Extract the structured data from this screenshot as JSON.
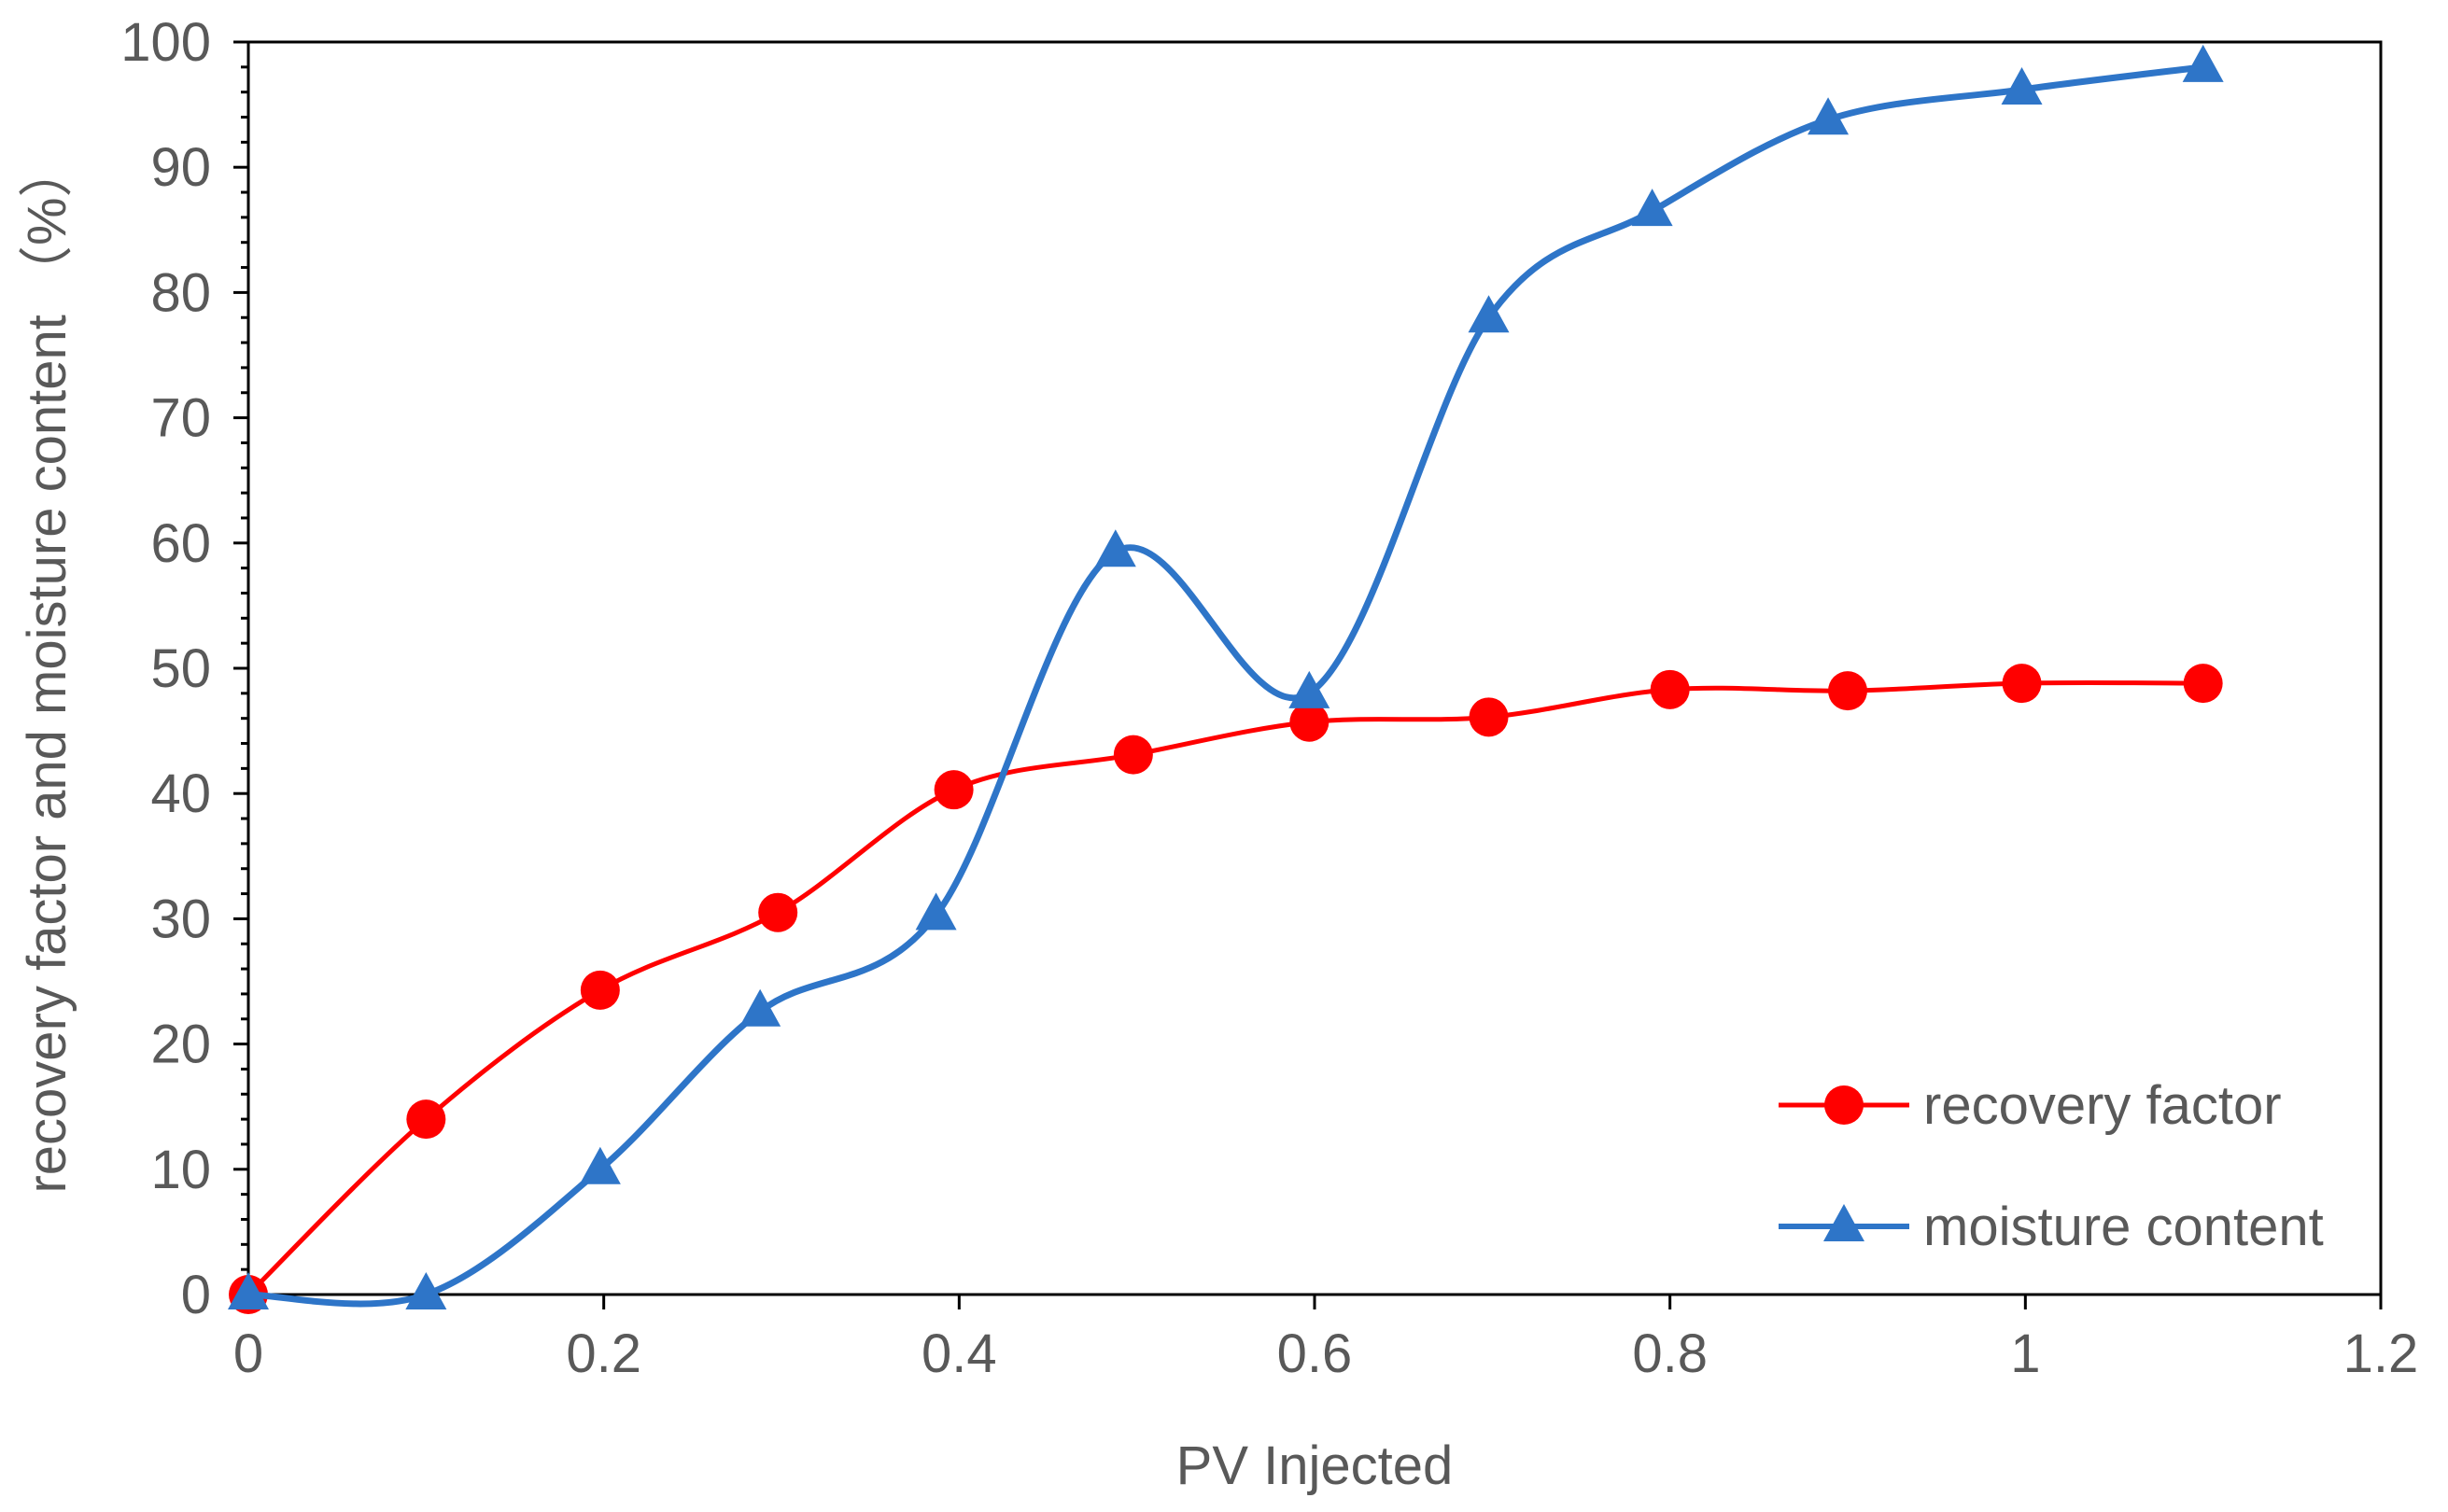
{
  "chart_data": {
    "type": "line",
    "xlabel": "PV Injected",
    "ylabel": "recovery factor and moisture content （%）",
    "xlim": [
      0,
      1.2
    ],
    "ylim": [
      0,
      100
    ],
    "x_ticks": [
      "0",
      "0.2",
      "0.4",
      "0.6",
      "0.8",
      "1",
      "1.2"
    ],
    "y_ticks": [
      "0",
      "10",
      "20",
      "30",
      "40",
      "50",
      "60",
      "70",
      "80",
      "90",
      "100"
    ],
    "grid": false,
    "legend_position": "bottom-right",
    "series": [
      {
        "name": "recovery factor",
        "color": "#ff0000",
        "marker": "circle",
        "x": [
          0,
          0.1,
          0.198,
          0.298,
          0.397,
          0.498,
          0.597,
          0.698,
          0.8,
          0.9,
          0.998,
          1.1
        ],
        "y": [
          0,
          14,
          24.3,
          30.5,
          40.3,
          43.1,
          45.7,
          46.1,
          48.3,
          48.2,
          48.8,
          48.8
        ]
      },
      {
        "name": "moisture content",
        "color": "#2e75c8",
        "marker": "triangle",
        "x": [
          0,
          0.1,
          0.198,
          0.288,
          0.387,
          0.488,
          0.597,
          0.698,
          0.79,
          0.889,
          0.998,
          1.1
        ],
        "y": [
          0,
          0,
          10,
          22.6,
          30.3,
          59.3,
          48,
          78,
          86.5,
          93.8,
          96.2,
          98
        ]
      }
    ]
  }
}
